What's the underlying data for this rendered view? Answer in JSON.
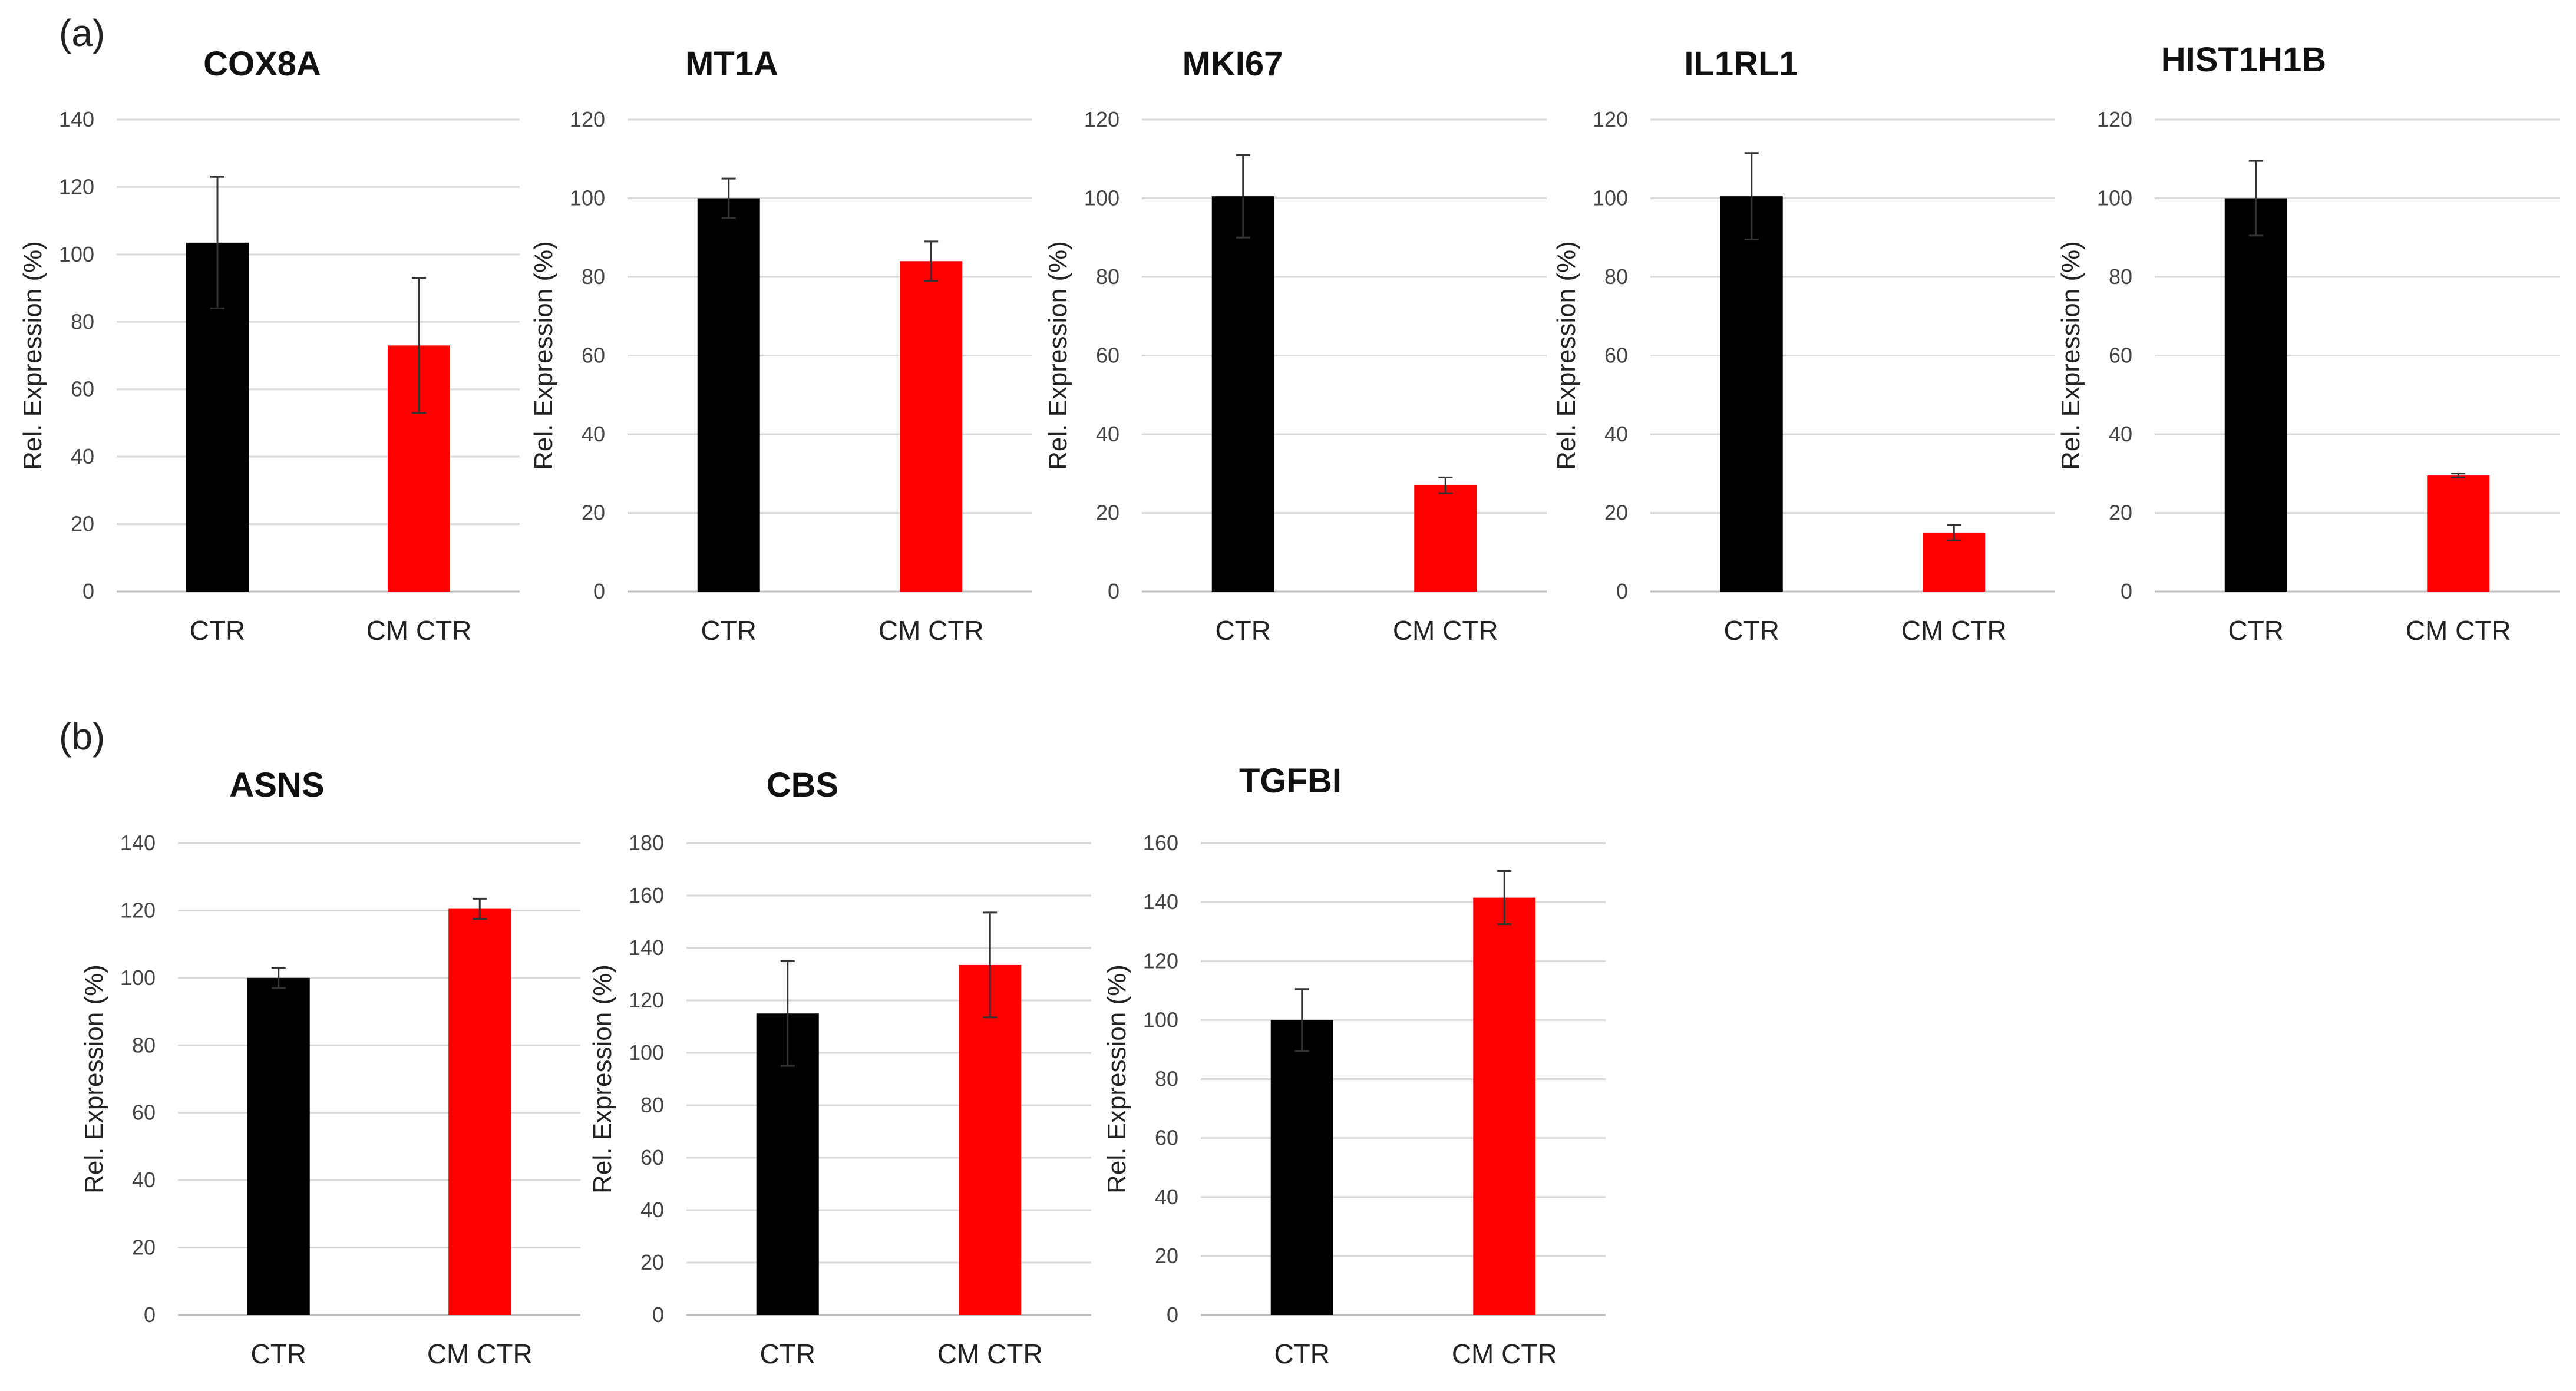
{
  "figure": {
    "panels": [
      {
        "label": "(a)"
      },
      {
        "label": "(b)"
      }
    ]
  },
  "chart_data": [
    {
      "type": "bar",
      "panel": "(a)",
      "title": "COX8A",
      "ylabel": "Rel. Expression (%)",
      "categories": [
        "CTR",
        "CM CTR"
      ],
      "values": [
        103.5,
        73
      ],
      "errors": [
        19.5,
        20
      ],
      "ylim": [
        0,
        140
      ],
      "yticks": [
        0,
        20,
        40,
        60,
        80,
        100,
        120,
        140
      ],
      "colors": [
        "#000000",
        "#ff0000"
      ]
    },
    {
      "type": "bar",
      "panel": "(a)",
      "title": "MT1A",
      "ylabel": "Rel. Expression (%)",
      "categories": [
        "CTR",
        "CM CTR"
      ],
      "values": [
        100,
        84
      ],
      "errors": [
        5,
        5
      ],
      "ylim": [
        0,
        120
      ],
      "yticks": [
        0,
        20,
        40,
        60,
        80,
        100,
        120
      ],
      "colors": [
        "#000000",
        "#ff0000"
      ]
    },
    {
      "type": "bar",
      "panel": "(a)",
      "title": "MKI67",
      "ylabel": "Rel. Expression (%)",
      "categories": [
        "CTR",
        "CM CTR"
      ],
      "values": [
        100.5,
        27
      ],
      "errors": [
        10.5,
        2
      ],
      "ylim": [
        0,
        120
      ],
      "yticks": [
        0,
        20,
        40,
        60,
        80,
        100,
        120
      ],
      "colors": [
        "#000000",
        "#ff0000"
      ]
    },
    {
      "type": "bar",
      "panel": "(a)",
      "title": "IL1RL1",
      "ylabel": "Rel. Expression (%)",
      "categories": [
        "CTR",
        "CM CTR"
      ],
      "values": [
        100.5,
        15
      ],
      "errors": [
        11,
        2
      ],
      "ylim": [
        0,
        120
      ],
      "yticks": [
        0,
        20,
        40,
        60,
        80,
        100,
        120
      ],
      "colors": [
        "#000000",
        "#ff0000"
      ]
    },
    {
      "type": "bar",
      "panel": "(a)",
      "title": "HIST1H1B",
      "ylabel": "Rel. Expression (%)",
      "categories": [
        "CTR",
        "CM CTR"
      ],
      "values": [
        100,
        29.5
      ],
      "errors": [
        9.5,
        0.5
      ],
      "ylim": [
        0,
        120
      ],
      "yticks": [
        0,
        20,
        40,
        60,
        80,
        100,
        120
      ],
      "colors": [
        "#000000",
        "#ff0000"
      ]
    },
    {
      "type": "bar",
      "panel": "(b)",
      "title": "ASNS",
      "ylabel": "Rel. Expression (%)",
      "categories": [
        "CTR",
        "CM CTR"
      ],
      "values": [
        100,
        120.5
      ],
      "errors": [
        3,
        3
      ],
      "ylim": [
        0,
        140
      ],
      "yticks": [
        0,
        20,
        40,
        60,
        80,
        100,
        120,
        140
      ],
      "colors": [
        "#000000",
        "#ff0000"
      ]
    },
    {
      "type": "bar",
      "panel": "(b)",
      "title": "CBS",
      "ylabel": "Rel. Expression (%)",
      "categories": [
        "CTR",
        "CM CTR"
      ],
      "values": [
        115,
        133.5
      ],
      "errors": [
        20,
        20
      ],
      "ylim": [
        0,
        180
      ],
      "yticks": [
        0,
        20,
        40,
        60,
        80,
        100,
        120,
        140,
        160,
        180
      ],
      "colors": [
        "#000000",
        "#ff0000"
      ]
    },
    {
      "type": "bar",
      "panel": "(b)",
      "title": "TGFBI",
      "ylabel": "Rel. Expression (%)",
      "categories": [
        "CTR",
        "CM CTR"
      ],
      "values": [
        100,
        141.5
      ],
      "errors": [
        10.5,
        9
      ],
      "ylim": [
        0,
        160
      ],
      "yticks": [
        0,
        20,
        40,
        60,
        80,
        100,
        120,
        140,
        160
      ],
      "colors": [
        "#000000",
        "#ff0000"
      ]
    }
  ]
}
